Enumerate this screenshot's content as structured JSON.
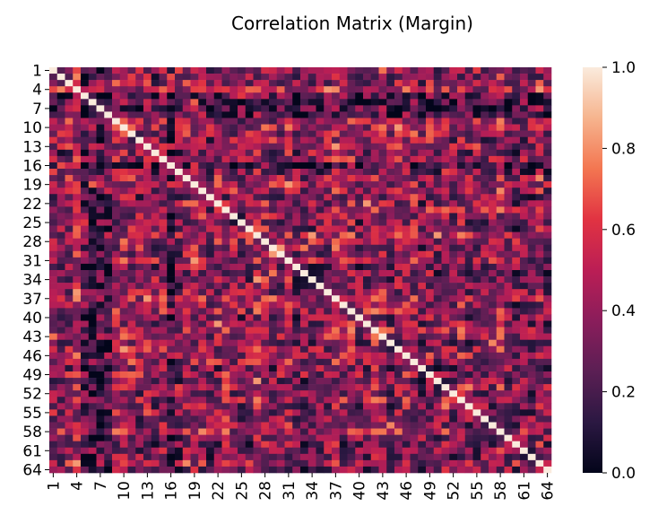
{
  "chart_data": {
    "type": "heatmap",
    "title": "Correlation Matrix (Margin)",
    "xlabel": "",
    "ylabel": "",
    "size": 64,
    "row_labels": [
      "1",
      "4",
      "7",
      "10",
      "13",
      "16",
      "19",
      "22",
      "25",
      "28",
      "31",
      "34",
      "37",
      "40",
      "43",
      "46",
      "49",
      "52",
      "55",
      "58",
      "61",
      "64"
    ],
    "col_labels": [
      "1",
      "4",
      "7",
      "10",
      "13",
      "16",
      "19",
      "22",
      "25",
      "28",
      "31",
      "34",
      "37",
      "40",
      "43",
      "46",
      "49",
      "52",
      "55",
      "58",
      "61",
      "64"
    ],
    "value_range": [
      0.0,
      1.0
    ],
    "colorbar": {
      "ticks": [
        "0.0",
        "0.2",
        "0.4",
        "0.6",
        "0.8",
        "1.0"
      ],
      "colormap": "rocket",
      "stops": [
        "#03051a",
        "#2b1842",
        "#5b1f54",
        "#8a1d5b",
        "#bb1e55",
        "#e13342",
        "#f37651",
        "#f6b48e",
        "#faebdd"
      ]
    },
    "diagonal_value": 1.0,
    "note_values": "64x64 symmetric matrix with unit diagonal; off-diagonal values are mostly 0.1-0.5"
  }
}
